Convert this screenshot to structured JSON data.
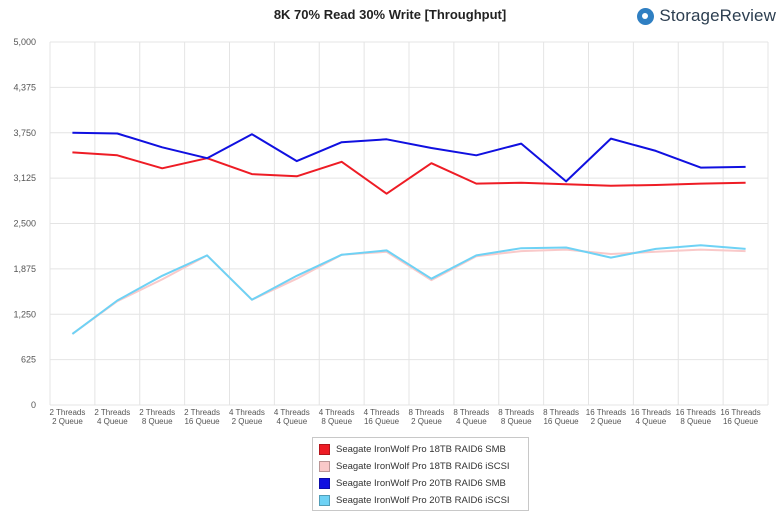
{
  "header": {
    "title": "8K 70% Read 30% Write [Throughput]",
    "brand": "StorageReview"
  },
  "chart_data": {
    "type": "line",
    "title": "8K 70% Read 30% Write [Throughput]",
    "xlabel": "",
    "ylabel": "",
    "ylim": [
      0,
      5000
    ],
    "yticks": [
      "0",
      "625",
      "1,250",
      "1,875",
      "2,500",
      "3,125",
      "3,750",
      "4,375",
      "5,000"
    ],
    "ytick_values": [
      0,
      625,
      1250,
      1875,
      2500,
      3125,
      3750,
      4375,
      5000
    ],
    "grid": true,
    "legend_position": "bottom",
    "categories": [
      [
        "2 Threads",
        "2 Queue"
      ],
      [
        "2 Threads",
        "4 Queue"
      ],
      [
        "2 Threads",
        "8 Queue"
      ],
      [
        "2 Threads",
        "16 Queue"
      ],
      [
        "4 Threads",
        "2 Queue"
      ],
      [
        "4 Threads",
        "4 Queue"
      ],
      [
        "4 Threads",
        "8 Queue"
      ],
      [
        "4 Threads",
        "16 Queue"
      ],
      [
        "8 Threads",
        "2 Queue"
      ],
      [
        "8 Threads",
        "4 Queue"
      ],
      [
        "8 Threads",
        "8 Queue"
      ],
      [
        "8 Threads",
        "16 Queue"
      ],
      [
        "16 Threads",
        "2 Queue"
      ],
      [
        "16 Threads",
        "4 Queue"
      ],
      [
        "16 Threads",
        "8 Queue"
      ],
      [
        "16 Threads",
        "16 Queue"
      ]
    ],
    "series": [
      {
        "name": "Seagate IronWolf Pro 18TB RAID6 SMB",
        "color": "#ee1c25",
        "values": [
          3480,
          3440,
          3260,
          3400,
          3180,
          3150,
          3350,
          2910,
          3330,
          3050,
          3060,
          3040,
          3020,
          3030,
          3050,
          3060
        ]
      },
      {
        "name": "Seagate IronWolf Pro 18TB RAID6 iSCSI",
        "color": "#f9c9c9",
        "values": [
          980,
          1430,
          1730,
          2060,
          1450,
          1740,
          2070,
          2110,
          1720,
          2050,
          2120,
          2140,
          2080,
          2110,
          2140,
          2120
        ]
      },
      {
        "name": "Seagate IronWolf Pro 20TB RAID6 SMB",
        "color": "#1010e0",
        "values": [
          3750,
          3740,
          3550,
          3400,
          3730,
          3360,
          3620,
          3660,
          3540,
          3440,
          3600,
          3080,
          3670,
          3500,
          3270,
          3280
        ]
      },
      {
        "name": "Seagate IronWolf Pro 20TB RAID6 iSCSI",
        "color": "#6ed2f5",
        "values": [
          980,
          1440,
          1780,
          2060,
          1450,
          1780,
          2070,
          2130,
          1740,
          2060,
          2160,
          2170,
          2030,
          2150,
          2200,
          2150
        ]
      }
    ]
  }
}
